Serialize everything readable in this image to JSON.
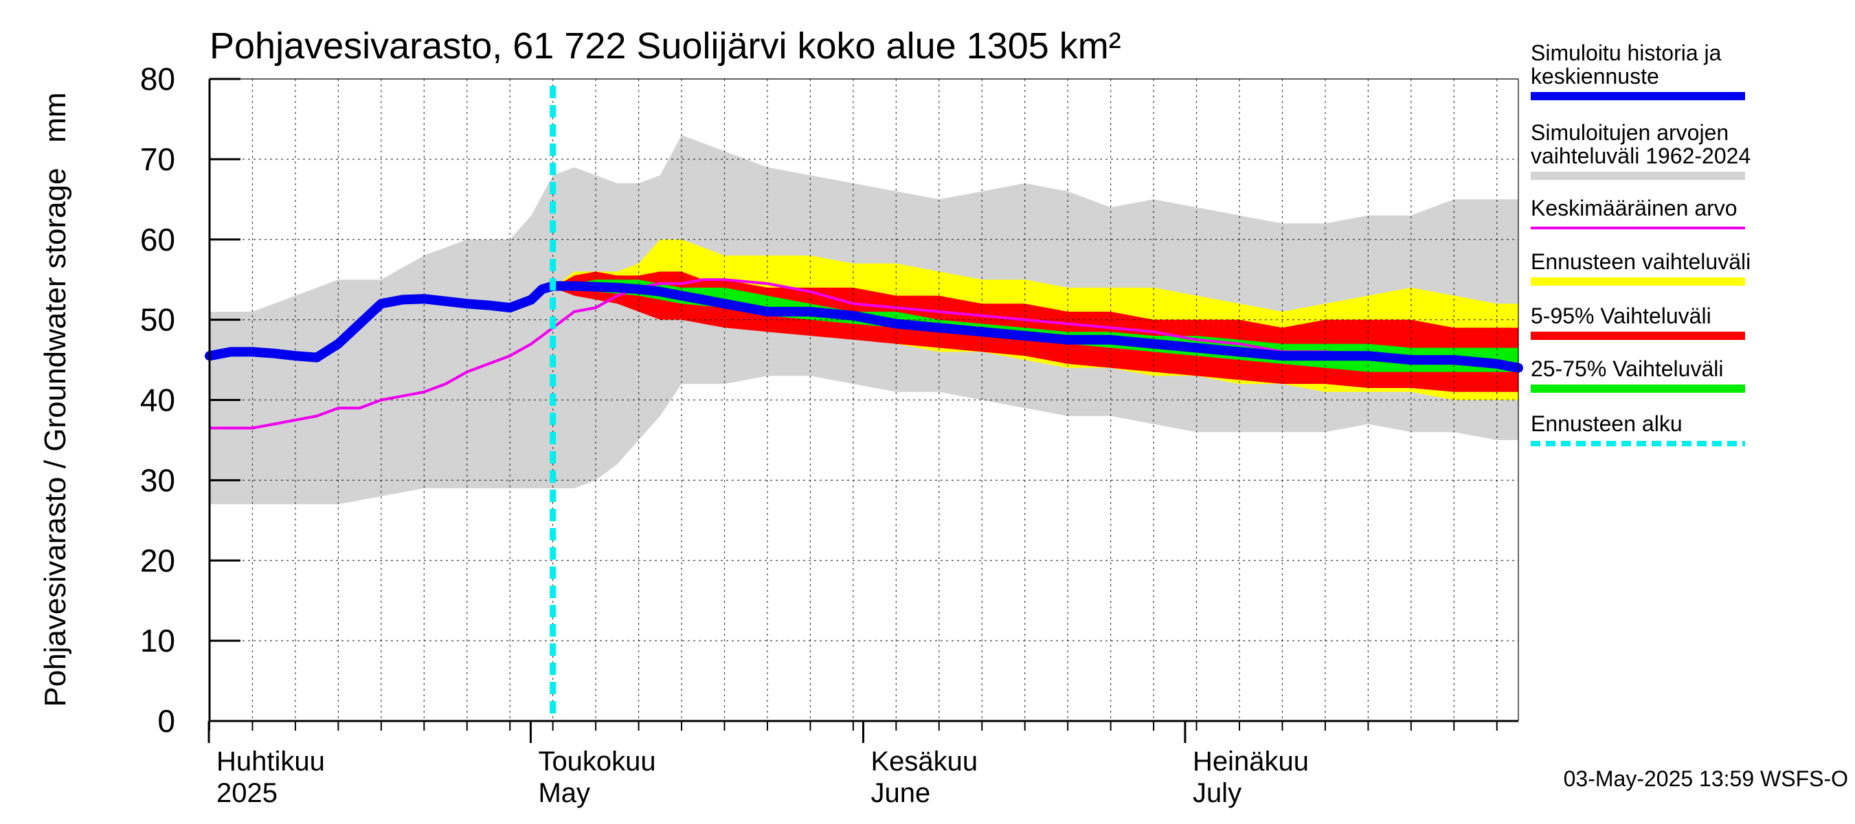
{
  "chart_data": {
    "type": "area",
    "title": "Pohjavesivarasto, 61 722 Suolijärvi koko alue 1305 km²",
    "ylabel": "Pohjavesivarasto / Groundwater storage   mm",
    "ylim": [
      0,
      80
    ],
    "y_ticks": [
      "0",
      "10",
      "20",
      "30",
      "40",
      "50",
      "60",
      "70",
      "80"
    ],
    "x_range_days": [
      0,
      122
    ],
    "month_labels": [
      {
        "fi": "Huhtikuu",
        "en": "2025",
        "day": 0
      },
      {
        "fi": "Toukokuu",
        "en": "May",
        "day": 30
      },
      {
        "fi": "Kesäkuu",
        "en": "June",
        "day": 61
      },
      {
        "fi": "Heinäkuu",
        "en": "July",
        "day": 91
      }
    ],
    "forecast_start_day": 32,
    "timestamp": "03-May-2025 13:59 WSFS-O",
    "legend": [
      {
        "label": [
          "Simuloitu historia ja",
          "keskiennuste"
        ],
        "color": "#0000ee",
        "style": "thick"
      },
      {
        "label": [
          "Simuloitujen arvojen",
          "vaihteluväli 1962-2024"
        ],
        "color": "#d3d3d3",
        "style": "band"
      },
      {
        "label": [
          "Keskimääräinen arvo"
        ],
        "color": "#ee00ee",
        "style": "thin"
      },
      {
        "label": [
          "Ennusteen vaihteluväli"
        ],
        "color": "#ffff00",
        "style": "band"
      },
      {
        "label": [
          "5-95% Vaihteluväli"
        ],
        "color": "#ff0000",
        "style": "band"
      },
      {
        "label": [
          "25-75% Vaihteluväli"
        ],
        "color": "#00ee00",
        "style": "band"
      },
      {
        "label": [
          "Ennusteen alku"
        ],
        "color": "#00eeee",
        "style": "dashed"
      }
    ],
    "series": {
      "hist_range_upper": {
        "x": [
          0,
          4,
          8,
          12,
          16,
          20,
          24,
          28,
          30,
          32,
          34,
          36,
          38,
          40,
          42,
          44,
          48,
          52,
          56,
          60,
          64,
          68,
          72,
          76,
          80,
          84,
          88,
          92,
          96,
          100,
          104,
          108,
          112,
          116,
          120,
          122
        ],
        "y": [
          51,
          51,
          53,
          55,
          55,
          58,
          60,
          60,
          63,
          68,
          69,
          68,
          67,
          67,
          68,
          73,
          71,
          69,
          68,
          67,
          66,
          65,
          66,
          67,
          66,
          64,
          65,
          64,
          63,
          62,
          62,
          63,
          63,
          65,
          65,
          65
        ]
      },
      "hist_range_lower": {
        "x": [
          0,
          4,
          8,
          12,
          16,
          20,
          24,
          28,
          30,
          32,
          34,
          36,
          38,
          40,
          42,
          44,
          48,
          52,
          56,
          60,
          64,
          68,
          72,
          76,
          80,
          84,
          88,
          92,
          96,
          100,
          104,
          108,
          112,
          116,
          120,
          122
        ],
        "y": [
          27,
          27,
          27,
          27,
          28,
          29,
          29,
          29,
          29,
          29,
          29,
          30,
          32,
          35,
          38,
          42,
          42,
          43,
          43,
          42,
          41,
          41,
          40,
          39,
          38,
          38,
          37,
          36,
          36,
          36,
          36,
          37,
          36,
          36,
          35,
          35
        ]
      },
      "forecast_range_upper": {
        "x": [
          32,
          34,
          36,
          38,
          40,
          42,
          44,
          46,
          48,
          52,
          56,
          60,
          64,
          68,
          72,
          76,
          80,
          84,
          88,
          92,
          96,
          100,
          104,
          108,
          112,
          116,
          120,
          122
        ],
        "y": [
          54,
          56,
          56,
          56,
          57,
          60,
          60,
          59,
          58,
          58,
          58,
          57,
          57,
          56,
          55,
          55,
          54,
          54,
          54,
          53,
          52,
          51,
          52,
          53,
          54,
          53,
          52,
          52
        ]
      },
      "forecast_range_lower": {
        "x": [
          32,
          34,
          36,
          38,
          40,
          42,
          44,
          46,
          48,
          52,
          56,
          60,
          64,
          68,
          72,
          76,
          80,
          84,
          88,
          92,
          96,
          100,
          104,
          108,
          112,
          116,
          120,
          122
        ],
        "y": [
          54,
          54,
          53,
          52,
          52,
          51,
          50,
          50,
          50,
          49,
          48,
          48,
          47,
          46,
          46,
          45,
          44,
          44,
          43,
          43,
          42,
          42,
          41,
          41,
          41,
          40,
          40,
          40
        ]
      },
      "p95_upper": {
        "x": [
          32,
          34,
          36,
          38,
          40,
          42,
          44,
          46,
          48,
          52,
          56,
          60,
          64,
          68,
          72,
          76,
          80,
          84,
          88,
          92,
          96,
          100,
          104,
          108,
          112,
          116,
          120,
          122
        ],
        "y": [
          54,
          55.5,
          56,
          55.5,
          55.5,
          56,
          56,
          55,
          55,
          54,
          54,
          54,
          53,
          53,
          52,
          52,
          51,
          51,
          50,
          50,
          50,
          49,
          50,
          50,
          50,
          49,
          49,
          49
        ]
      },
      "p95_lower": {
        "x": [
          32,
          34,
          36,
          38,
          40,
          42,
          44,
          46,
          48,
          52,
          56,
          60,
          64,
          68,
          72,
          76,
          80,
          84,
          88,
          92,
          96,
          100,
          104,
          108,
          112,
          116,
          120,
          122
        ],
        "y": [
          54,
          53,
          52.5,
          52,
          51,
          50,
          50,
          49.5,
          49,
          48.5,
          48,
          47.5,
          47,
          46.5,
          46,
          45.5,
          44.5,
          44,
          43.5,
          43,
          42.5,
          42,
          42,
          41.5,
          41.5,
          41,
          41,
          41
        ]
      },
      "p75_upper": {
        "x": [
          32,
          36,
          40,
          44,
          48,
          52,
          56,
          60,
          64,
          68,
          72,
          76,
          80,
          84,
          88,
          92,
          96,
          100,
          104,
          108,
          112,
          116,
          120,
          122
        ],
        "y": [
          54,
          55,
          55,
          54,
          54,
          53,
          52,
          51,
          51,
          50,
          49.5,
          49,
          48.5,
          48.5,
          48,
          48,
          47.5,
          47,
          47,
          47,
          46.5,
          46.5,
          46.5,
          46.5
        ]
      },
      "p75_lower": {
        "x": [
          32,
          36,
          40,
          44,
          48,
          52,
          56,
          60,
          64,
          68,
          72,
          76,
          80,
          84,
          88,
          92,
          96,
          100,
          104,
          108,
          112,
          116,
          120,
          122
        ],
        "y": [
          54,
          53.5,
          53,
          52,
          51.5,
          50.5,
          50,
          49.5,
          49,
          48.5,
          48,
          47.5,
          47,
          46.5,
          46,
          45.5,
          45,
          44.5,
          44,
          43.5,
          43.5,
          43.5,
          43.5,
          43.5
        ]
      },
      "simulated": {
        "x": [
          0,
          2,
          4,
          6,
          8,
          10,
          12,
          14,
          16,
          18,
          20,
          22,
          24,
          26,
          28,
          30,
          31,
          32,
          34,
          36,
          38,
          40,
          42,
          44,
          46,
          48,
          52,
          56,
          60,
          64,
          68,
          72,
          76,
          80,
          84,
          88,
          92,
          96,
          100,
          104,
          108,
          112,
          116,
          120,
          122
        ],
        "y": [
          45.5,
          46,
          46,
          45.8,
          45.5,
          45.3,
          47,
          49.5,
          52,
          52.5,
          52.6,
          52.3,
          52,
          51.8,
          51.5,
          52.5,
          53.8,
          54.2,
          54.2,
          54.1,
          54,
          53.8,
          53.5,
          53,
          52.5,
          52,
          51,
          51,
          50.5,
          49.5,
          49,
          48.5,
          48,
          47.5,
          47.5,
          47,
          46.5,
          46,
          45.5,
          45.5,
          45.5,
          45,
          45,
          44.5,
          44
        ]
      },
      "mean": {
        "x": [
          0,
          2,
          4,
          6,
          8,
          10,
          12,
          14,
          16,
          18,
          20,
          22,
          24,
          26,
          28,
          30,
          31,
          32,
          34,
          36,
          38,
          40,
          42,
          44,
          46,
          48,
          52,
          56,
          60,
          64,
          68,
          72,
          76,
          80,
          84,
          88,
          92,
          96,
          100,
          104,
          108,
          112,
          116,
          120,
          122
        ],
        "y": [
          36.5,
          36.5,
          36.5,
          37,
          37.5,
          38,
          39,
          39,
          40,
          40.5,
          41,
          42,
          43.5,
          44.5,
          45.5,
          47,
          48,
          49,
          51,
          51.5,
          53,
          54,
          54.5,
          54.5,
          55,
          55,
          54.5,
          53.5,
          52,
          51.5,
          51,
          50.5,
          50,
          49.5,
          49,
          48.5,
          47.5,
          47,
          46,
          46,
          45.5,
          45,
          45,
          44.5,
          44.5
        ]
      }
    }
  }
}
